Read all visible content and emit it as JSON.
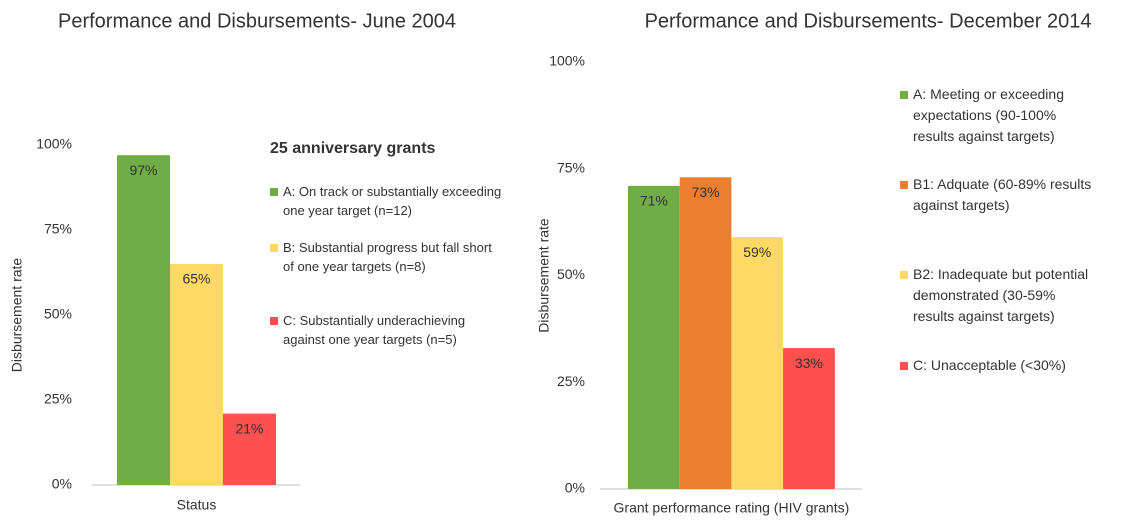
{
  "chart_data": [
    {
      "type": "bar",
      "title": "Performance and Disbursements- June 2004",
      "y_label": "Disbursement rate",
      "categories": [
        "Status"
      ],
      "legend_title": "25 anniversary grants",
      "ylim": [
        0,
        100
      ],
      "yticks": [
        {
          "value": 0,
          "label": "0%"
        },
        {
          "value": 25,
          "label": "25%"
        },
        {
          "value": 50,
          "label": "50%"
        },
        {
          "value": 75,
          "label": "75%"
        },
        {
          "value": 100,
          "label": "100%"
        }
      ],
      "series": [
        {
          "name": "A: On track or substantially exceeding one year target (n=12)",
          "color": "#70ad47",
          "values": [
            97
          ],
          "value_labels": [
            "97%"
          ]
        },
        {
          "name": "B: Substantial progress but fall short of one year targets (n=8)",
          "color": "#ffd966",
          "values": [
            65
          ],
          "value_labels": [
            "65%"
          ]
        },
        {
          "name": "C: Substantially underachieving against one year targets (n=5)",
          "color": "#ff5050",
          "values": [
            21
          ],
          "value_labels": [
            "21%"
          ]
        }
      ]
    },
    {
      "type": "bar",
      "title": "Performance and Disbursements- December 2014",
      "y_label": "Disbursement rate",
      "categories": [
        "Grant performance rating (HIV grants)"
      ],
      "ylim": [
        0,
        100
      ],
      "yticks": [
        {
          "value": 0,
          "label": "0%"
        },
        {
          "value": 25,
          "label": "25%"
        },
        {
          "value": 50,
          "label": "50%"
        },
        {
          "value": 75,
          "label": "75%"
        },
        {
          "value": 100,
          "label": "100%"
        }
      ],
      "series": [
        {
          "name": "A: Meeting or exceeding expectations (90-100% results against targets)",
          "color": "#70ad47",
          "values": [
            71
          ],
          "value_labels": [
            "71%"
          ]
        },
        {
          "name": "B1: Adquate (60-89% results against targets)",
          "color": "#ed7d31",
          "values": [
            73
          ],
          "value_labels": [
            "73%"
          ]
        },
        {
          "name": "B2: Inadequate but potential demonstrated (30-59% results against targets)",
          "color": "#ffd966",
          "values": [
            59
          ],
          "value_labels": [
            "59%"
          ]
        },
        {
          "name": "C: Unacceptable (<30%)",
          "color": "#ff5050",
          "values": [
            33
          ],
          "value_labels": [
            "33%"
          ]
        }
      ]
    }
  ]
}
